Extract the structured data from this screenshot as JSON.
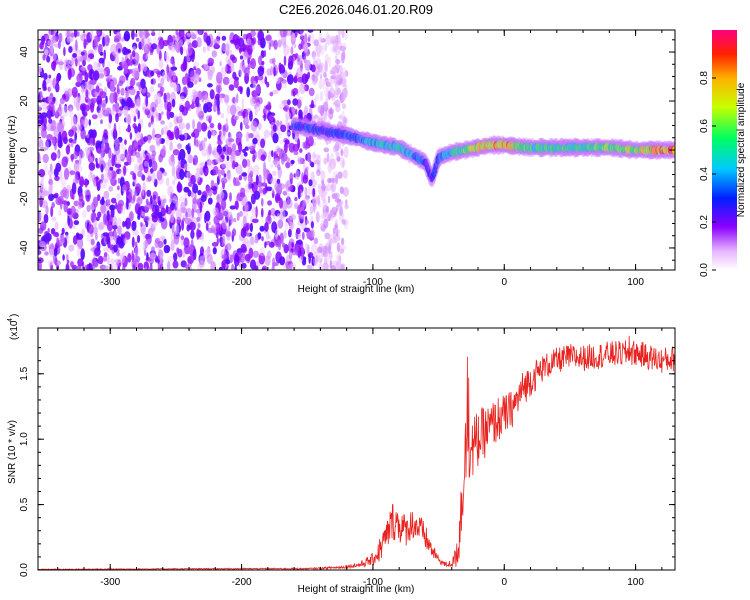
{
  "title": "C2E6.2026.046.01.20.R09",
  "colors": {
    "spectrogram_low": "#8a00ff",
    "snr_line": "#e8231f",
    "frame": "#000000"
  },
  "chart_data": [
    {
      "type": "heatmap",
      "name": "spectrogram",
      "xlabel": "Height of straight line (km)",
      "ylabel": "Frequency (Hz)",
      "xlim": [
        -355,
        130
      ],
      "ylim": [
        -49,
        49
      ],
      "xticks": [
        -300,
        -200,
        -100,
        0,
        100
      ],
      "yticks": [
        -40,
        -20,
        0,
        20,
        40
      ],
      "colorbar": {
        "label": "Normalized spectral amplitude",
        "range": [
          0,
          1
        ],
        "ticks": [
          "0.0",
          "0.2",
          "0.4",
          "0.6",
          "0.8"
        ],
        "colormap": "rainbow"
      },
      "description": "Broadband purple noise from -355 to ~-145 km; a coherent tone drifting from ~+12 Hz at -160 km down through ~0 Hz at -80 km, dipping to ~-15 Hz near -55 km, then flat near 0-2 Hz from -40 km to 130 km with high amplitude.",
      "ridge": {
        "x": [
          -160,
          -140,
          -120,
          -100,
          -90,
          -80,
          -70,
          -60,
          -55,
          -50,
          -40,
          -30,
          -20,
          -10,
          0,
          20,
          50,
          80,
          100,
          130
        ],
        "freq": [
          10,
          8,
          6,
          3,
          2,
          1,
          -2,
          -5,
          -12,
          -3,
          -1,
          0,
          1,
          2,
          2,
          1,
          1,
          1,
          0,
          0
        ],
        "amplitude": [
          0.35,
          0.3,
          0.35,
          0.45,
          0.5,
          0.5,
          0.45,
          0.3,
          0.25,
          0.35,
          0.5,
          0.6,
          0.7,
          0.8,
          0.85,
          0.55,
          0.55,
          0.6,
          0.7,
          0.9
        ]
      }
    },
    {
      "type": "line",
      "name": "snr",
      "xlabel": "Height of straight line (km)",
      "ylabel": "SNR (10 * v/v)",
      "scale_label": "(x10",
      "scale_exp": "4",
      "xlim": [
        -355,
        130
      ],
      "ylim": [
        0,
        1.85
      ],
      "xticks": [
        -300,
        -200,
        -100,
        0,
        100
      ],
      "yticks": [
        "0.0",
        "0.5",
        "1.0",
        "1.5"
      ],
      "series": [
        {
          "name": "SNR",
          "x": [
            -355,
            -200,
            -150,
            -125,
            -110,
            -100,
            -95,
            -90,
            -85,
            -80,
            -75,
            -70,
            -65,
            -60,
            -55,
            -50,
            -45,
            -40,
            -38,
            -36,
            -34,
            -32,
            -30,
            -28,
            -25,
            -22,
            -20,
            -15,
            -10,
            -5,
            0,
            5,
            10,
            15,
            20,
            25,
            30,
            40,
            50,
            60,
            80,
            100,
            120,
            130
          ],
          "values": [
            0.005,
            0.01,
            0.01,
            0.02,
            0.04,
            0.08,
            0.15,
            0.25,
            0.38,
            0.35,
            0.3,
            0.36,
            0.32,
            0.25,
            0.15,
            0.08,
            0.04,
            0.05,
            0.08,
            0.15,
            0.3,
            0.6,
            0.85,
            1.0,
            0.92,
            0.95,
            1.0,
            1.05,
            1.1,
            1.15,
            1.18,
            1.22,
            1.3,
            1.4,
            1.45,
            1.5,
            1.55,
            1.6,
            1.63,
            1.62,
            1.65,
            1.66,
            1.6,
            1.62
          ],
          "noise": [
            0.003,
            0.004,
            0.005,
            0.01,
            0.02,
            0.05,
            0.1,
            0.12,
            0.15,
            0.15,
            0.12,
            0.12,
            0.12,
            0.1,
            0.06,
            0.03,
            0.02,
            0.03,
            0.06,
            0.15,
            0.25,
            0.3,
            0.3,
            0.3,
            0.25,
            0.25,
            0.22,
            0.2,
            0.18,
            0.18,
            0.16,
            0.15,
            0.14,
            0.14,
            0.12,
            0.12,
            0.1,
            0.1,
            0.1,
            0.1,
            0.1,
            0.1,
            0.1,
            0.1
          ],
          "spikes": [
            {
              "x": -28,
              "y": 1.63
            },
            {
              "x": -27,
              "y": 1.47
            },
            {
              "x": 95,
              "y": 1.79
            }
          ]
        }
      ]
    }
  ]
}
